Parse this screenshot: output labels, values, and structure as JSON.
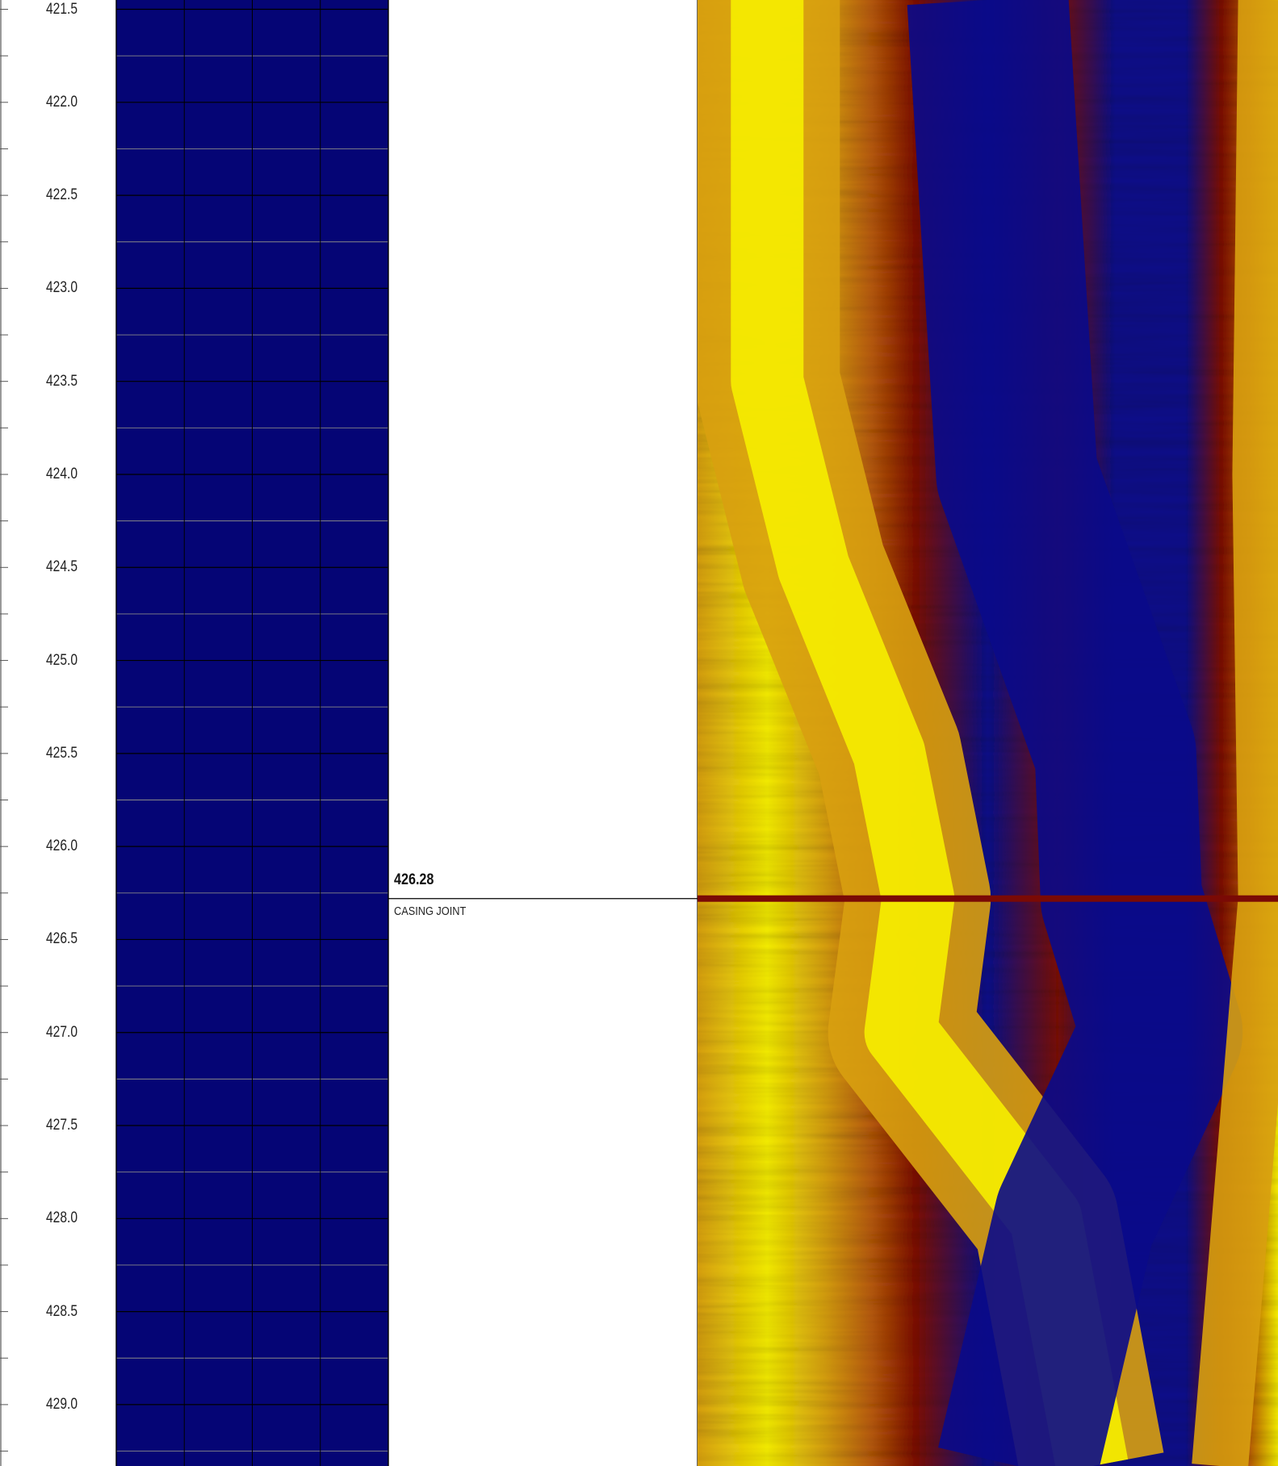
{
  "chart_data": [
    {
      "type": "heatmap",
      "name": "uniform-track",
      "y_axis": {
        "label": "",
        "ticks": [
          "421.5",
          "422.0",
          "422.5",
          "423.0",
          "423.5",
          "424.0",
          "424.5",
          "425.0",
          "425.5",
          "426.0",
          "426.5",
          "427.0",
          "427.5",
          "428.0",
          "428.5",
          "429.0"
        ],
        "range": [
          421.45,
          429.33
        ],
        "minor_tick_step": 0.25
      },
      "fill_color": "#050575",
      "grid": true,
      "grid_columns": 4
    },
    {
      "type": "heatmap",
      "name": "acoustic-image",
      "palette": [
        "#0a0a8a",
        "#7a0a05",
        "#b85a08",
        "#d8a010",
        "#f6ee00"
      ],
      "grid": true,
      "grid_columns": 4,
      "annotations": [
        {
          "depth": 426.28,
          "label": "426.28",
          "text": "CASING JOINT"
        }
      ]
    }
  ],
  "depth_labels": [
    "421.5",
    "422.0",
    "422.5",
    "423.0",
    "423.5",
    "424.0",
    "424.5",
    "425.0",
    "425.5",
    "426.0",
    "426.5",
    "427.0",
    "427.5",
    "428.0",
    "428.5",
    "429.0"
  ],
  "event": {
    "depth_label": "426.28",
    "name": "CASING JOINT"
  }
}
